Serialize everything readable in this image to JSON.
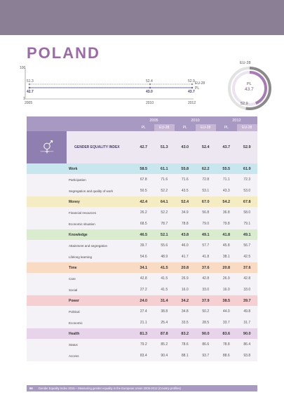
{
  "country": "POLAND",
  "trend": {
    "y_top": "100",
    "y_bottom": "1",
    "years": [
      "2005",
      "2010",
      "2012"
    ],
    "pl_label": "PL",
    "eu_label": "EU-28",
    "eu_values": [
      "51.3",
      "52.4",
      "52.9"
    ],
    "pl_values": [
      "42.7",
      "43.0",
      "43.7"
    ]
  },
  "donut": {
    "eu_label": "EU-28",
    "pl_label": "PL",
    "pl_value": "43.7",
    "eu_value": "52.9",
    "pl_fraction": 0.437,
    "eu_fraction": 0.529
  },
  "table": {
    "years": [
      "2005",
      "2010",
      "2012"
    ],
    "cols": [
      "PL",
      "EU-28",
      "PL",
      "EU-28",
      "PL",
      "EU-28"
    ],
    "index": {
      "label": "GENDER EQUALITY INDEX",
      "values": [
        "42.7",
        "51.3",
        "43.0",
        "52.4",
        "43.7",
        "52.9"
      ]
    },
    "domains": [
      {
        "name": "Work",
        "icon": "tools-icon",
        "color": "#c7e6ee",
        "icon_bg": "#a8d3e0",
        "label": "Work",
        "values": [
          "58.5",
          "61.1",
          "55.8",
          "62.2",
          "55.5",
          "61.9"
        ],
        "subs": [
          {
            "label": "Participation",
            "values": [
              "67.8",
              "71.6",
              "71.6",
              "72.8",
              "71.1",
              "72.3"
            ]
          },
          {
            "label": "Segregation and quality of work",
            "values": [
              "50.5",
              "52.2",
              "43.5",
              "53.1",
              "43.3",
              "53.0"
            ]
          }
        ]
      },
      {
        "name": "Money",
        "icon": "coins-icon",
        "color": "#f5ecc4",
        "icon_bg": "#ecdb97",
        "label": "Money",
        "values": [
          "42.4",
          "64.1",
          "52.4",
          "67.0",
          "54.2",
          "67.8"
        ],
        "subs": [
          {
            "label": "Financial resources",
            "values": [
              "26.2",
              "52.2",
              "34.9",
              "56.8",
              "36.8",
              "58.0"
            ]
          },
          {
            "label": "Economic situation",
            "values": [
              "68.5",
              "78.7",
              "78.8",
              "79.0",
              "79.8",
              "79.1"
            ]
          }
        ]
      },
      {
        "name": "Knowledge",
        "icon": "book-icon",
        "color": "#d9ecce",
        "icon_bg": "#9ac98a",
        "label": "Knowledge",
        "values": [
          "46.5",
          "52.1",
          "43.8",
          "49.1",
          "41.8",
          "49.1"
        ],
        "subs": [
          {
            "label": "Attainment and segregation",
            "values": [
              "39.7",
              "55.6",
              "46.0",
              "57.7",
              "45.8",
              "56.7"
            ]
          },
          {
            "label": "Lifelong learning",
            "values": [
              "54.6",
              "48.9",
              "41.7",
              "41.8",
              "38.1",
              "42.5"
            ]
          }
        ]
      },
      {
        "name": "Time",
        "icon": "clock-icon",
        "color": "#f9dbc3",
        "icon_bg": "#f0b089",
        "label": "Time",
        "values": [
          "34.1",
          "41.5",
          "20.8",
          "37.6",
          "20.8",
          "37.6"
        ],
        "subs": [
          {
            "label": "Care",
            "values": [
              "42.8",
              "41.5",
              "26.9",
              "42.8",
              "26.9",
              "42.8"
            ]
          },
          {
            "label": "Social",
            "values": [
              "27.2",
              "41.5",
              "16.0",
              "33.0",
              "16.0",
              "33.0"
            ]
          }
        ]
      },
      {
        "name": "Power",
        "icon": "fist-icon",
        "color": "#f6cfd3",
        "icon_bg": "#ec9fa8",
        "label": "Power",
        "values": [
          "24.0",
          "31.4",
          "34.2",
          "37.9",
          "38.5",
          "39.7"
        ],
        "subs": [
          {
            "label": "Political",
            "values": [
              "27.4",
              "38.8",
              "34.8",
              "50.2",
              "44.0",
              "49.8"
            ]
          },
          {
            "label": "Economic",
            "values": [
              "21.1",
              "25.4",
              "33.5",
              "28.5",
              "33.7",
              "31.7"
            ]
          }
        ]
      },
      {
        "name": "Health",
        "icon": "heartbeat-icon",
        "color": "#e8d4ea",
        "icon_bg": "#d1a9d5",
        "label": "Health",
        "values": [
          "81.3",
          "87.8",
          "83.2",
          "90.0",
          "83.6",
          "90.0"
        ],
        "subs": [
          {
            "label": "Status",
            "values": [
              "79.2",
              "85.2",
              "78.6",
              "86.6",
              "78.8",
              "86.4"
            ]
          },
          {
            "label": "Access",
            "values": [
              "83.4",
              "90.4",
              "88.1",
              "93.7",
              "88.6",
              "93.8"
            ]
          }
        ]
      }
    ]
  },
  "footer": {
    "page": "66",
    "text": "Gender Equality Index 2015 – Measuring gender equality in the European Union 2005-2012 (Country profiles)"
  }
}
